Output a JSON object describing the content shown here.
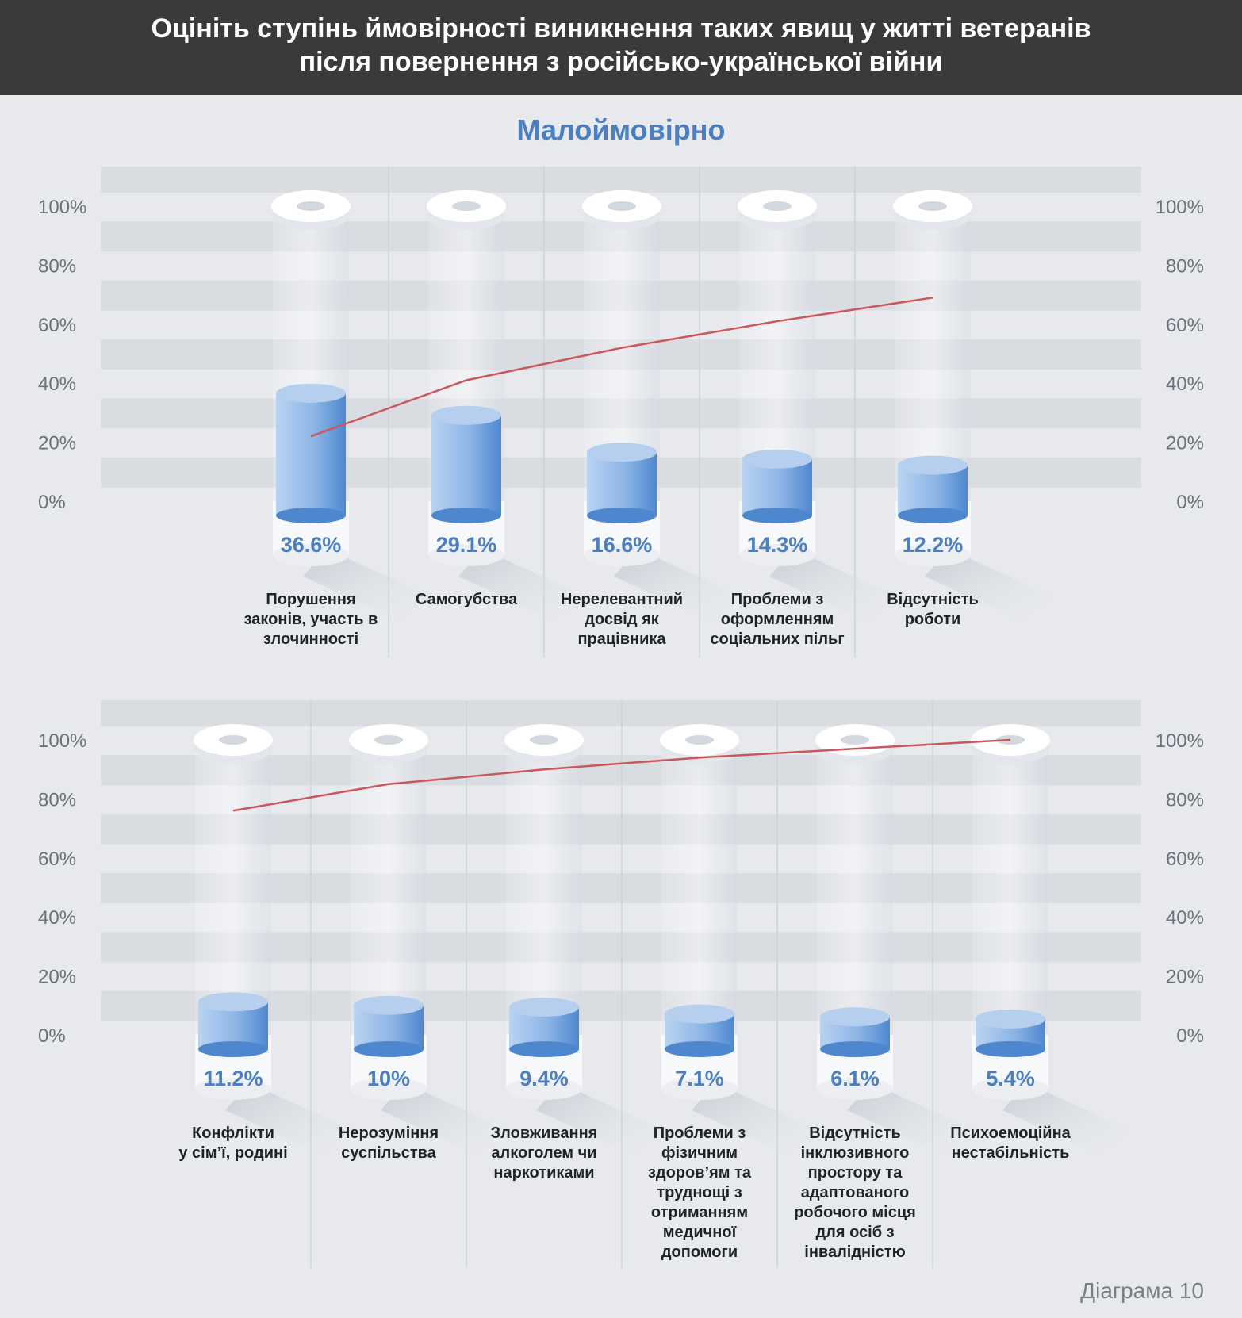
{
  "header": {
    "title_line1": "Оцініть ступінь ймовірності виникнення таких явищ у житті ветеранів",
    "title_line2": "після повернення з російсько-української війни"
  },
  "subtitle": "Малоймовірно",
  "footer": "Діаграма 10",
  "colors": {
    "header_bg": "#3a3a3a",
    "accent_blue": "#4a7fc1",
    "line_red": "#c9575c",
    "background": "#e7e9ed"
  },
  "chart_data": [
    {
      "type": "bar",
      "yticks": [
        "0%",
        "20%",
        "40%",
        "60%",
        "80%",
        "100%"
      ],
      "ylim": [
        0,
        100
      ],
      "categories": [
        [
          "Порушення",
          "законів, участь в",
          "злочинності"
        ],
        [
          "Самогубства"
        ],
        [
          "Нерелевантний",
          "досвід як",
          "працівника"
        ],
        [
          "Проблеми з",
          "оформленням",
          "соціальних пільг"
        ],
        [
          "Відсутність",
          "роботи"
        ]
      ],
      "values": [
        36.6,
        29.1,
        16.6,
        14.3,
        12.2
      ],
      "value_labels": [
        "36.6%",
        "29.1%",
        "16.6%",
        "14.3%",
        "12.2%"
      ],
      "cumulative_line": [
        22,
        41,
        52,
        61,
        69
      ]
    },
    {
      "type": "bar",
      "yticks": [
        "0%",
        "20%",
        "40%",
        "60%",
        "80%",
        "100%"
      ],
      "ylim": [
        0,
        100
      ],
      "categories": [
        [
          "Конфлікти",
          "у сім’ї, родині"
        ],
        [
          "Нерозуміння",
          "суспільства"
        ],
        [
          "Зловживання",
          "алкоголем чи",
          "наркотиками"
        ],
        [
          "Проблеми з",
          "фізичним",
          "здоров’ям та",
          "труднощі з",
          "отриманням",
          "медичної",
          "допомоги"
        ],
        [
          "Відсутність",
          "інклюзивного",
          "простору та",
          "адаптованого",
          "робочого місця",
          "для осіб з",
          "інвалідністю"
        ],
        [
          "Психоемоційна",
          "нестабільність"
        ]
      ],
      "values": [
        11.2,
        10,
        9.4,
        7.1,
        6.1,
        5.4
      ],
      "value_labels": [
        "11.2%",
        "10%",
        "9.4%",
        "7.1%",
        "6.1%",
        "5.4%"
      ],
      "cumulative_line": [
        76,
        85,
        90,
        94,
        97,
        100
      ]
    }
  ]
}
